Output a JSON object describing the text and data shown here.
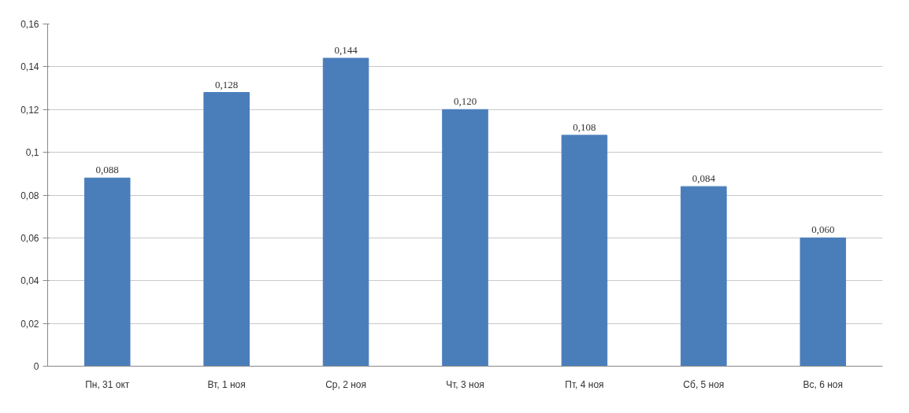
{
  "chart_data": {
    "type": "bar",
    "categories": [
      "Пн, 31 окт",
      "Вт, 1 ноя",
      "Ср, 2 ноя",
      "Чт, 3 ноя",
      "Пт, 4 ноя",
      "Сб, 5 ноя",
      "Вс, 6 ноя"
    ],
    "values": [
      0.088,
      0.128,
      0.144,
      0.12,
      0.108,
      0.084,
      0.06
    ],
    "value_labels": [
      "0,088",
      "0,128",
      "0,144",
      "0,120",
      "0,108",
      "0,084",
      "0,060"
    ],
    "color": "#4a7ebb",
    "ylim": [
      0,
      0.16
    ],
    "yticks": [
      0,
      {
        "value": 0.02,
        "label": "0,02"
      },
      {
        "value": 0.04,
        "label": "0,04"
      },
      {
        "value": 0.06,
        "label": "0,06"
      },
      {
        "value": 0.08,
        "label": "0,08"
      },
      {
        "value": 0.1,
        "label": "0,1"
      },
      {
        "value": 0.12,
        "label": "0,12"
      },
      {
        "value": 0.14,
        "label": "0,14"
      },
      {
        "value": 0.16,
        "label": "0,16"
      }
    ],
    "grid": "y"
  }
}
